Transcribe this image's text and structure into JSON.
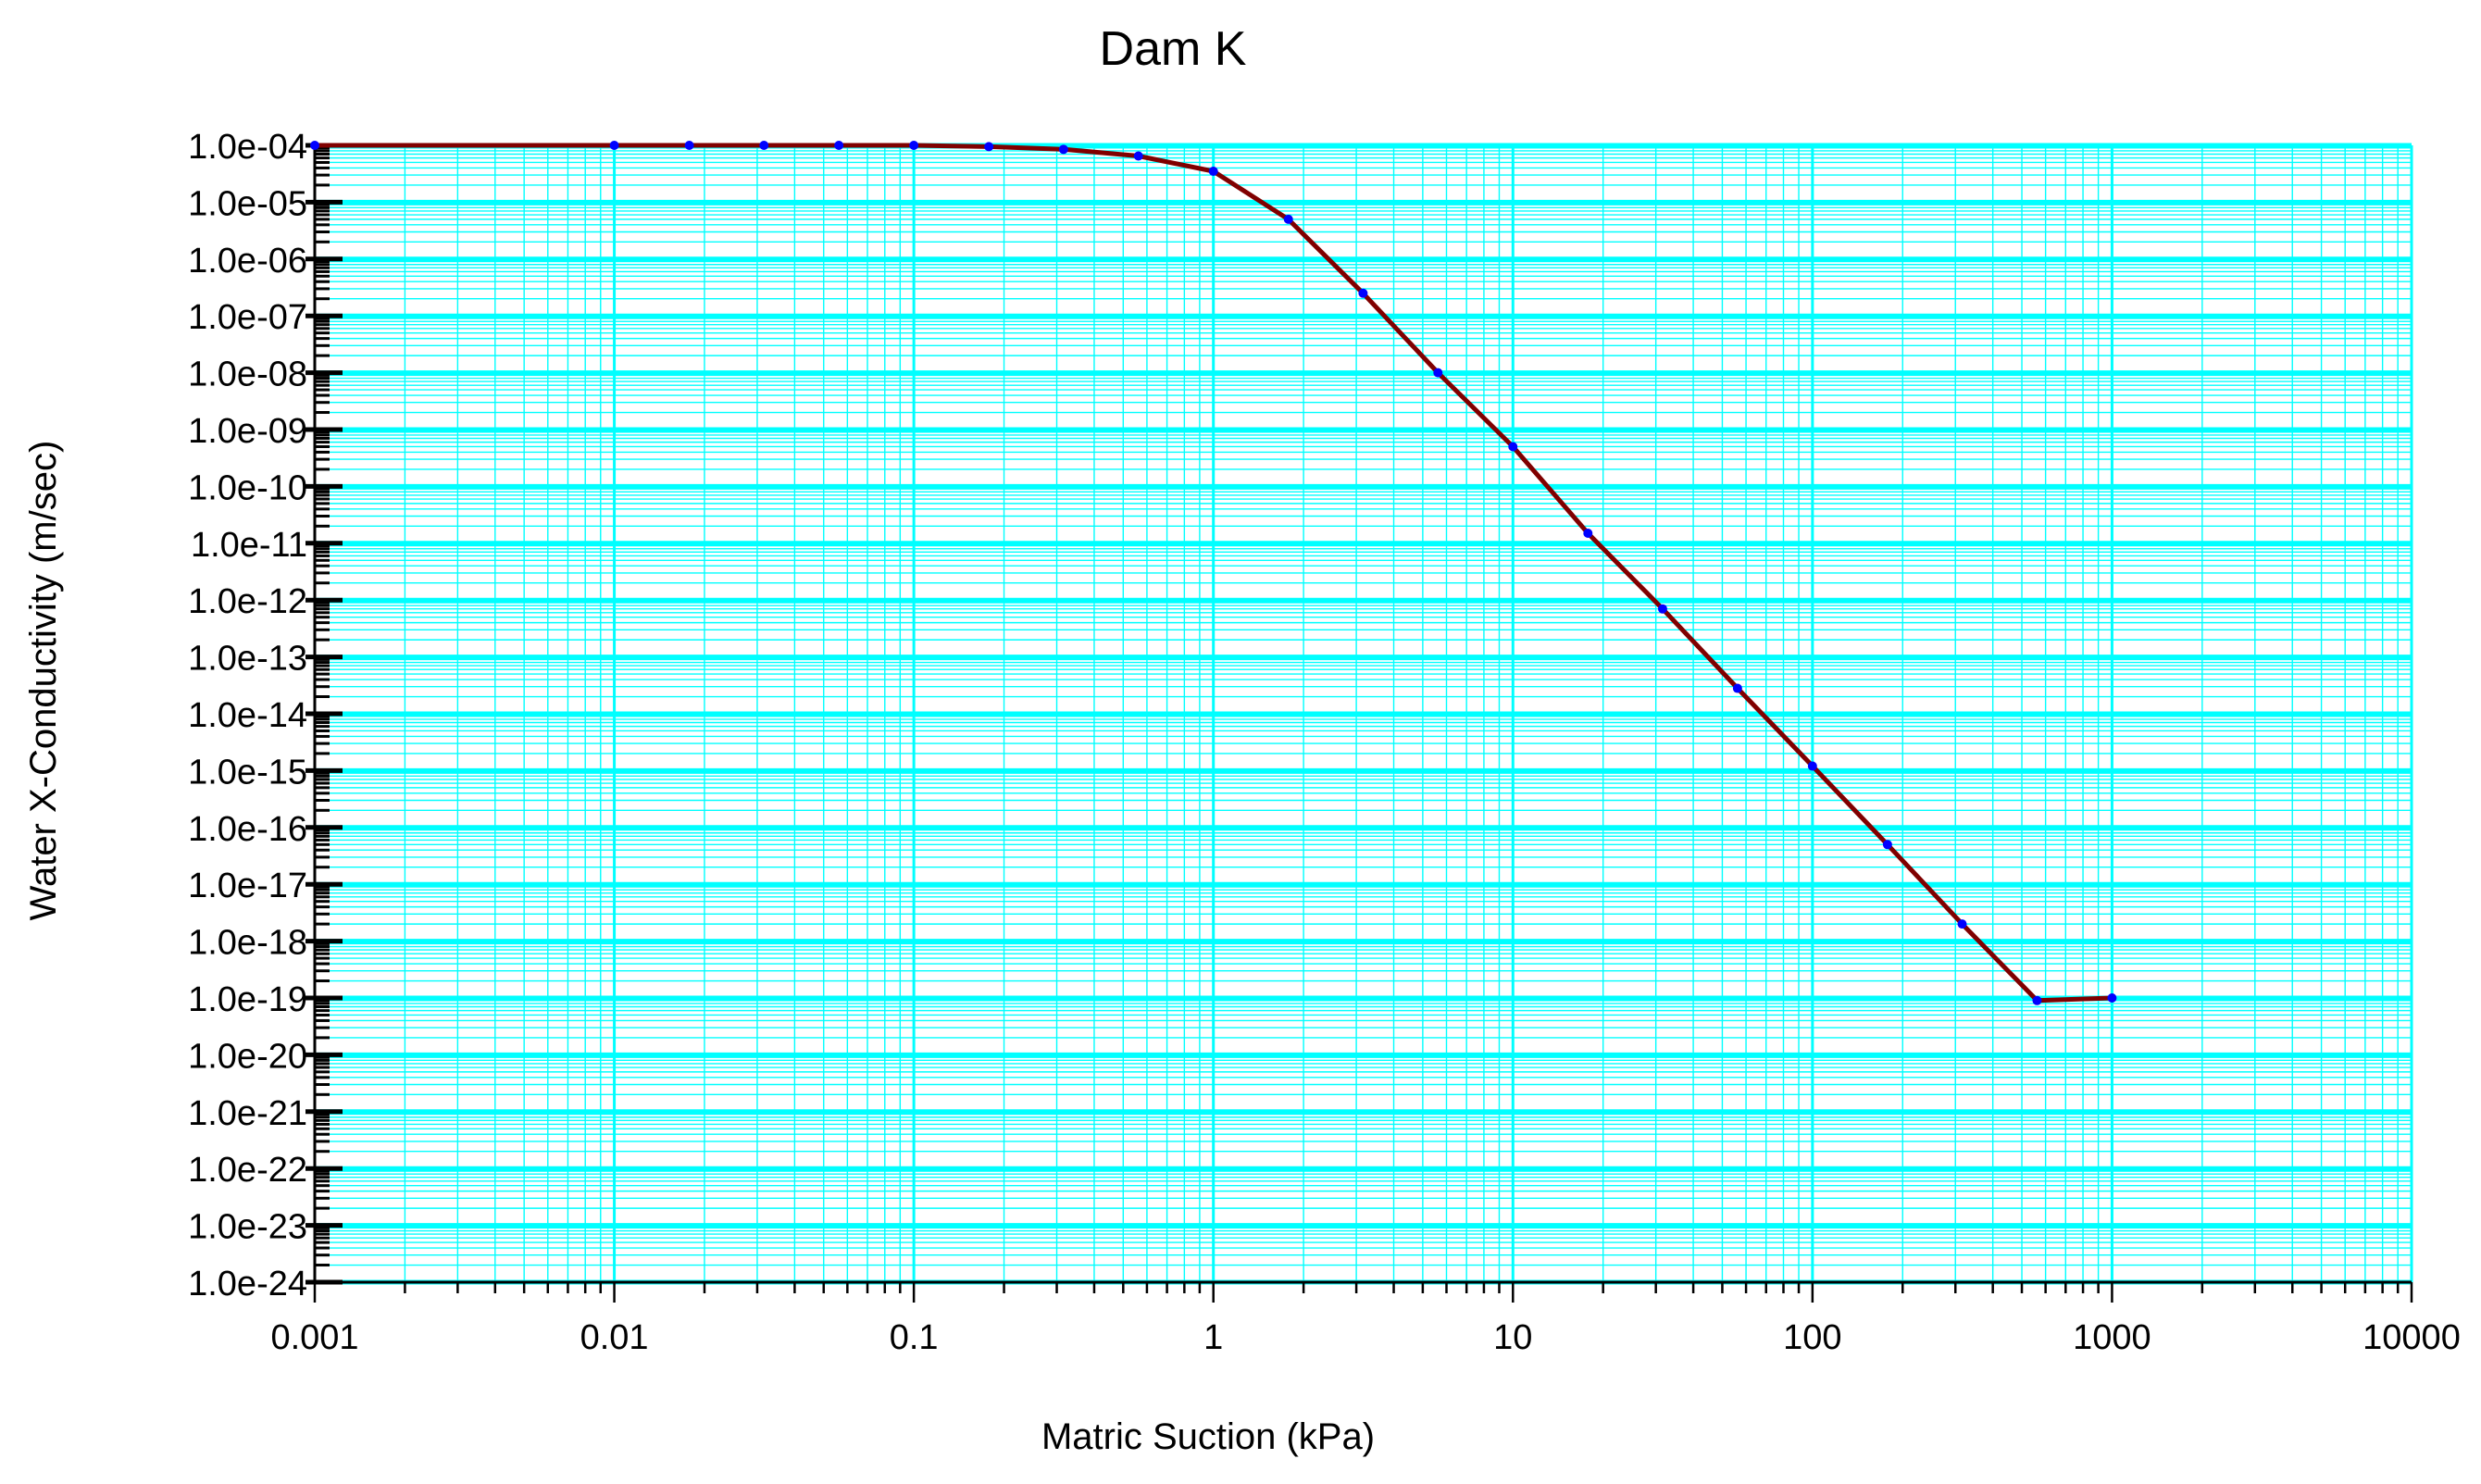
{
  "chart_data": {
    "type": "line",
    "title": "Dam K",
    "xlabel": "Matric Suction (kPa)",
    "ylabel": "Water X-Conductivity (m/sec)",
    "x_scale": "log",
    "y_scale": "log",
    "xlim": [
      0.001,
      10000
    ],
    "ylim": [
      1e-24,
      0.0001
    ],
    "x_tick_labels": [
      "0.001",
      "0.01",
      "0.1",
      "1",
      "10",
      "100",
      "1000",
      "10000"
    ],
    "y_tick_labels": [
      "1.0e-04",
      "1.0e-05",
      "1.0e-06",
      "1.0e-07",
      "1.0e-08",
      "1.0e-09",
      "1.0e-10",
      "1.0e-11",
      "1.0e-12",
      "1.0e-13",
      "1.0e-14",
      "1.0e-15",
      "1.0e-16",
      "1.0e-17",
      "1.0e-18",
      "1.0e-19",
      "1.0e-20",
      "1.0e-21",
      "1.0e-22",
      "1.0e-23",
      "1.0e-24"
    ],
    "grid": true,
    "legend": false,
    "colors": {
      "grid": "#00ffff",
      "line": "#800000",
      "markers": "#0000ff",
      "axes": "#000000",
      "background": "#ffffff"
    },
    "series": [
      {
        "x": [
          0.001,
          0.01,
          0.0178,
          0.0316,
          0.0562,
          0.1,
          0.178,
          0.316,
          0.562,
          1,
          1.78,
          3.16,
          5.62,
          10,
          17.8,
          31.6,
          56.2,
          100,
          178,
          316,
          562,
          1000
        ],
        "y": [
          0.0001,
          0.0001,
          0.0001,
          0.0001,
          0.0001,
          0.0001,
          9.5e-05,
          8.5e-05,
          6.5e-05,
          3.5e-05,
          5e-06,
          2.5e-07,
          1e-08,
          5e-10,
          1.5e-11,
          7e-13,
          2.8e-14,
          1.2e-15,
          5e-17,
          2e-18,
          9e-20,
          1e-19
        ]
      }
    ]
  }
}
